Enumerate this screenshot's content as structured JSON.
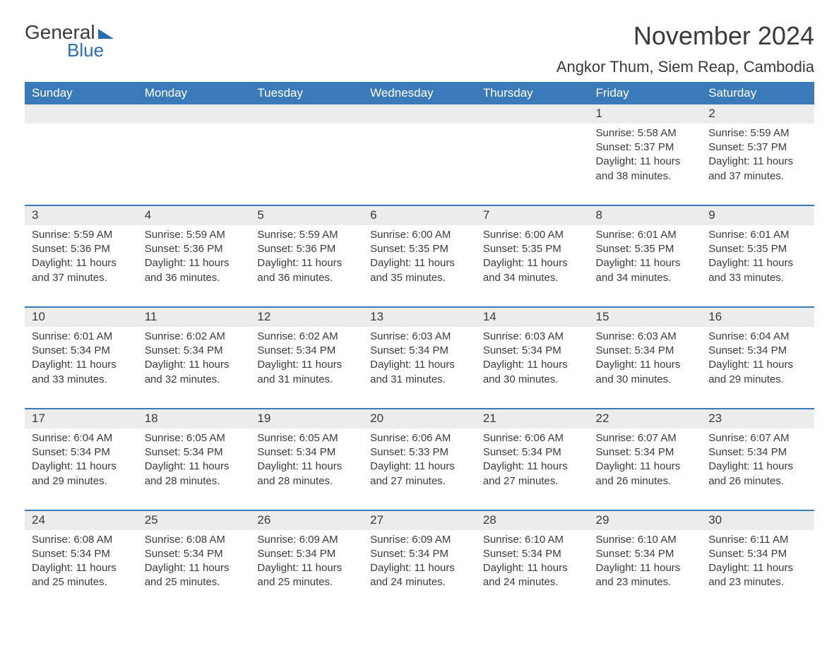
{
  "brand": {
    "general": "General",
    "blue": "Blue"
  },
  "title": "November 2024",
  "location": "Angkor Thum, Siem Reap, Cambodia",
  "colors": {
    "header_bg": "#3a7ab8",
    "header_text": "#ffffff",
    "row_stripe": "#ececec",
    "border": "#3a7ab8",
    "text": "#3a3a3a",
    "logo_blue": "#2a6db0",
    "background": "#ffffff"
  },
  "fonts": {
    "title_size_pt": 36,
    "location_size_pt": 22,
    "header_size_pt": 17,
    "body_size_pt": 15
  },
  "layout": {
    "columns": 7,
    "rows": 5,
    "aspect_ratio": "1188:918"
  },
  "day_headers": [
    "Sunday",
    "Monday",
    "Tuesday",
    "Wednesday",
    "Thursday",
    "Friday",
    "Saturday"
  ],
  "weeks": [
    [
      null,
      null,
      null,
      null,
      null,
      {
        "n": "1",
        "sunrise": "Sunrise: 5:58 AM",
        "sunset": "Sunset: 5:37 PM",
        "daylight": "Daylight: 11 hours and 38 minutes."
      },
      {
        "n": "2",
        "sunrise": "Sunrise: 5:59 AM",
        "sunset": "Sunset: 5:37 PM",
        "daylight": "Daylight: 11 hours and 37 minutes."
      }
    ],
    [
      {
        "n": "3",
        "sunrise": "Sunrise: 5:59 AM",
        "sunset": "Sunset: 5:36 PM",
        "daylight": "Daylight: 11 hours and 37 minutes."
      },
      {
        "n": "4",
        "sunrise": "Sunrise: 5:59 AM",
        "sunset": "Sunset: 5:36 PM",
        "daylight": "Daylight: 11 hours and 36 minutes."
      },
      {
        "n": "5",
        "sunrise": "Sunrise: 5:59 AM",
        "sunset": "Sunset: 5:36 PM",
        "daylight": "Daylight: 11 hours and 36 minutes."
      },
      {
        "n": "6",
        "sunrise": "Sunrise: 6:00 AM",
        "sunset": "Sunset: 5:35 PM",
        "daylight": "Daylight: 11 hours and 35 minutes."
      },
      {
        "n": "7",
        "sunrise": "Sunrise: 6:00 AM",
        "sunset": "Sunset: 5:35 PM",
        "daylight": "Daylight: 11 hours and 34 minutes."
      },
      {
        "n": "8",
        "sunrise": "Sunrise: 6:01 AM",
        "sunset": "Sunset: 5:35 PM",
        "daylight": "Daylight: 11 hours and 34 minutes."
      },
      {
        "n": "9",
        "sunrise": "Sunrise: 6:01 AM",
        "sunset": "Sunset: 5:35 PM",
        "daylight": "Daylight: 11 hours and 33 minutes."
      }
    ],
    [
      {
        "n": "10",
        "sunrise": "Sunrise: 6:01 AM",
        "sunset": "Sunset: 5:34 PM",
        "daylight": "Daylight: 11 hours and 33 minutes."
      },
      {
        "n": "11",
        "sunrise": "Sunrise: 6:02 AM",
        "sunset": "Sunset: 5:34 PM",
        "daylight": "Daylight: 11 hours and 32 minutes."
      },
      {
        "n": "12",
        "sunrise": "Sunrise: 6:02 AM",
        "sunset": "Sunset: 5:34 PM",
        "daylight": "Daylight: 11 hours and 31 minutes."
      },
      {
        "n": "13",
        "sunrise": "Sunrise: 6:03 AM",
        "sunset": "Sunset: 5:34 PM",
        "daylight": "Daylight: 11 hours and 31 minutes."
      },
      {
        "n": "14",
        "sunrise": "Sunrise: 6:03 AM",
        "sunset": "Sunset: 5:34 PM",
        "daylight": "Daylight: 11 hours and 30 minutes."
      },
      {
        "n": "15",
        "sunrise": "Sunrise: 6:03 AM",
        "sunset": "Sunset: 5:34 PM",
        "daylight": "Daylight: 11 hours and 30 minutes."
      },
      {
        "n": "16",
        "sunrise": "Sunrise: 6:04 AM",
        "sunset": "Sunset: 5:34 PM",
        "daylight": "Daylight: 11 hours and 29 minutes."
      }
    ],
    [
      {
        "n": "17",
        "sunrise": "Sunrise: 6:04 AM",
        "sunset": "Sunset: 5:34 PM",
        "daylight": "Daylight: 11 hours and 29 minutes."
      },
      {
        "n": "18",
        "sunrise": "Sunrise: 6:05 AM",
        "sunset": "Sunset: 5:34 PM",
        "daylight": "Daylight: 11 hours and 28 minutes."
      },
      {
        "n": "19",
        "sunrise": "Sunrise: 6:05 AM",
        "sunset": "Sunset: 5:34 PM",
        "daylight": "Daylight: 11 hours and 28 minutes."
      },
      {
        "n": "20",
        "sunrise": "Sunrise: 6:06 AM",
        "sunset": "Sunset: 5:33 PM",
        "daylight": "Daylight: 11 hours and 27 minutes."
      },
      {
        "n": "21",
        "sunrise": "Sunrise: 6:06 AM",
        "sunset": "Sunset: 5:34 PM",
        "daylight": "Daylight: 11 hours and 27 minutes."
      },
      {
        "n": "22",
        "sunrise": "Sunrise: 6:07 AM",
        "sunset": "Sunset: 5:34 PM",
        "daylight": "Daylight: 11 hours and 26 minutes."
      },
      {
        "n": "23",
        "sunrise": "Sunrise: 6:07 AM",
        "sunset": "Sunset: 5:34 PM",
        "daylight": "Daylight: 11 hours and 26 minutes."
      }
    ],
    [
      {
        "n": "24",
        "sunrise": "Sunrise: 6:08 AM",
        "sunset": "Sunset: 5:34 PM",
        "daylight": "Daylight: 11 hours and 25 minutes."
      },
      {
        "n": "25",
        "sunrise": "Sunrise: 6:08 AM",
        "sunset": "Sunset: 5:34 PM",
        "daylight": "Daylight: 11 hours and 25 minutes."
      },
      {
        "n": "26",
        "sunrise": "Sunrise: 6:09 AM",
        "sunset": "Sunset: 5:34 PM",
        "daylight": "Daylight: 11 hours and 25 minutes."
      },
      {
        "n": "27",
        "sunrise": "Sunrise: 6:09 AM",
        "sunset": "Sunset: 5:34 PM",
        "daylight": "Daylight: 11 hours and 24 minutes."
      },
      {
        "n": "28",
        "sunrise": "Sunrise: 6:10 AM",
        "sunset": "Sunset: 5:34 PM",
        "daylight": "Daylight: 11 hours and 24 minutes."
      },
      {
        "n": "29",
        "sunrise": "Sunrise: 6:10 AM",
        "sunset": "Sunset: 5:34 PM",
        "daylight": "Daylight: 11 hours and 23 minutes."
      },
      {
        "n": "30",
        "sunrise": "Sunrise: 6:11 AM",
        "sunset": "Sunset: 5:34 PM",
        "daylight": "Daylight: 11 hours and 23 minutes."
      }
    ]
  ]
}
